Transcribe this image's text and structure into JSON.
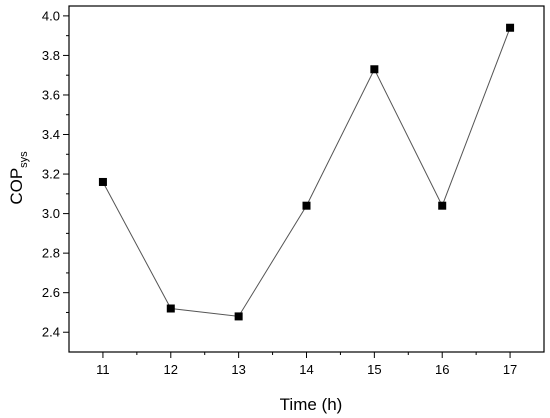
{
  "chart_data": {
    "type": "line",
    "title": "",
    "xlabel": "Time (h)",
    "ylabel_main": "COP",
    "ylabel_sub": "sys",
    "x": [
      11,
      12,
      13,
      14,
      15,
      16,
      17
    ],
    "series": [
      {
        "values": [
          3.16,
          2.52,
          2.48,
          3.04,
          3.73,
          3.04,
          3.94
        ]
      }
    ],
    "xlim": [
      10.5,
      17.5
    ],
    "ylim": [
      2.3,
      4.05
    ],
    "xticks": [
      11,
      12,
      13,
      14,
      15,
      16,
      17
    ],
    "xtick_labels": [
      "11",
      "12",
      "13",
      "14",
      "15",
      "16",
      "17"
    ],
    "yticks": [
      2.4,
      2.6,
      2.8,
      3.0,
      3.2,
      3.4,
      3.6,
      3.8,
      4.0
    ],
    "ytick_labels": [
      "2.4",
      "2.6",
      "2.8",
      "3.0",
      "3.2",
      "3.4",
      "3.6",
      "3.8",
      "4.0"
    ],
    "marker": "square",
    "line_color": "#555555",
    "marker_color": "#000000",
    "grid": false,
    "legend": "none"
  }
}
